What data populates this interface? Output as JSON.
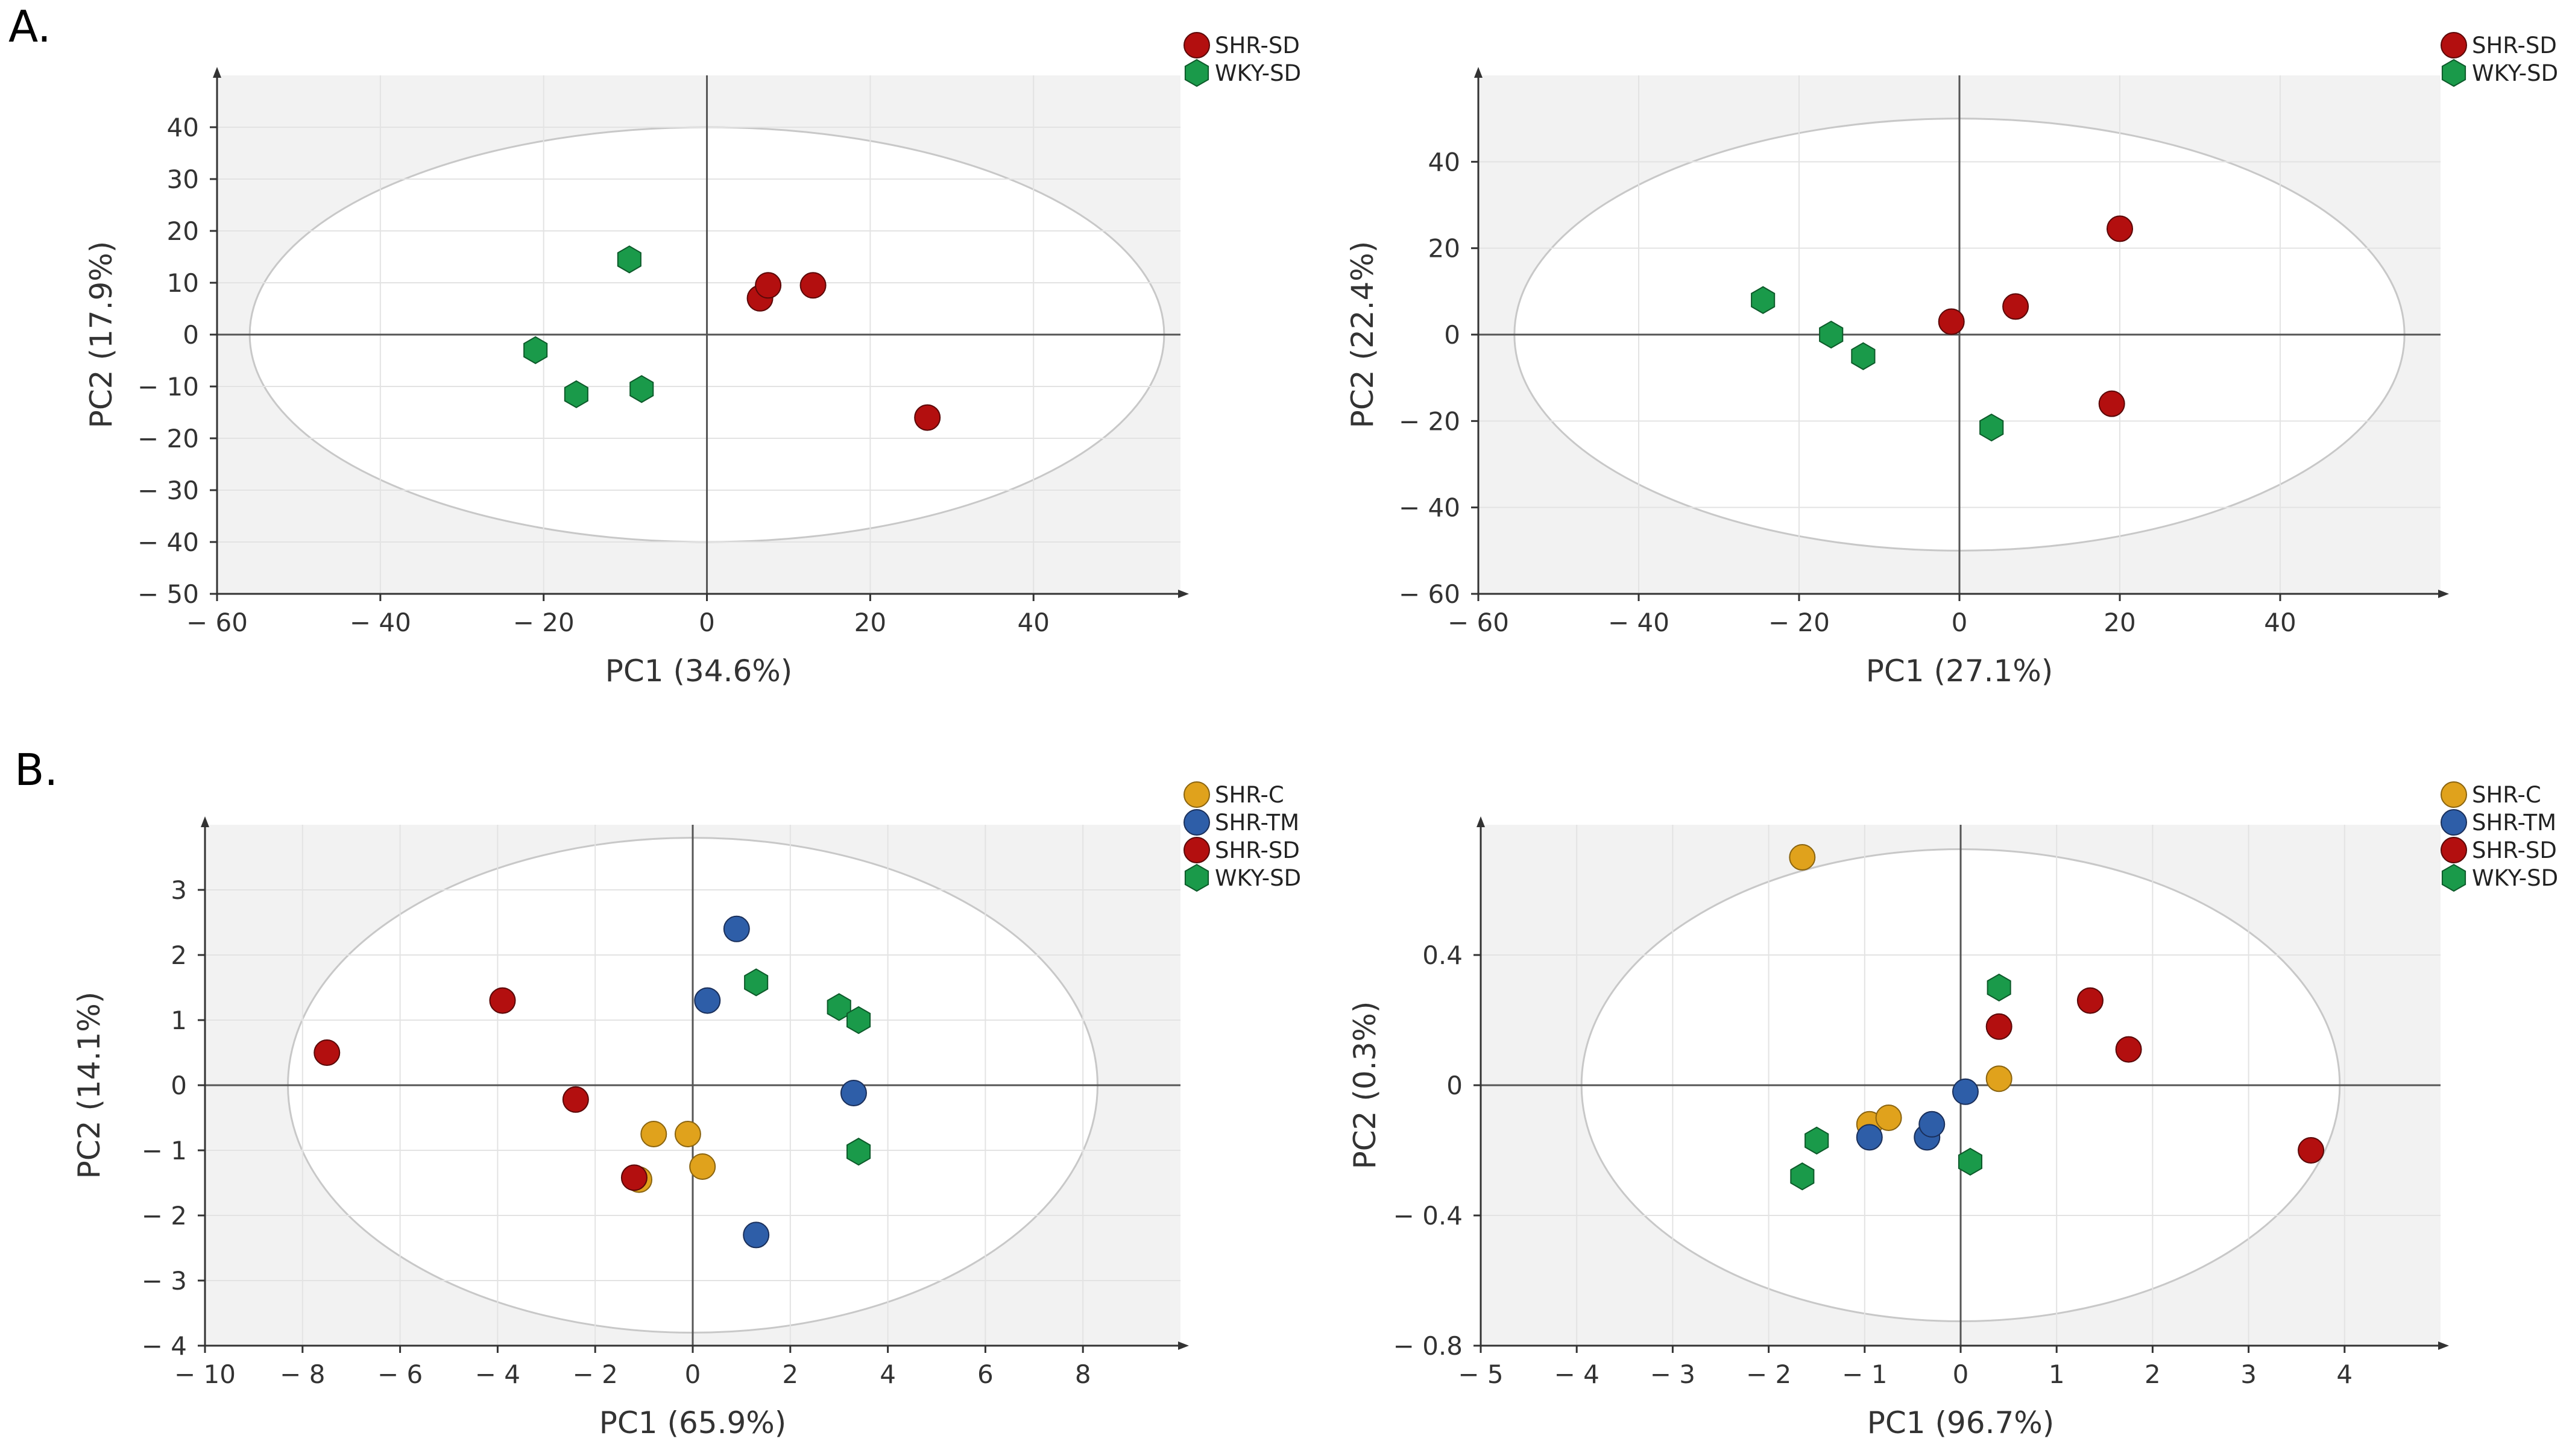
{
  "panels": {
    "a_label": "A.",
    "b_label": "B."
  },
  "chart_data": [
    {
      "type": "scatter",
      "panel": "A",
      "position": "left",
      "xlabel": "PC1 (34.6%)",
      "ylabel": "PC2 (17.9%)",
      "xlim": [
        -60,
        58
      ],
      "ylim": [
        -50,
        50
      ],
      "xticks": [
        -60,
        -40,
        -20,
        0,
        20,
        40
      ],
      "yticks": [
        -50,
        -40,
        -30,
        -20,
        -10,
        0,
        10,
        20,
        30,
        40
      ],
      "xtick_labels": [
        "− 60",
        "− 40",
        "− 20",
        "0",
        "20",
        "40"
      ],
      "ytick_labels": [
        "− 50",
        "− 40",
        "− 30",
        "− 20",
        "− 10",
        "0",
        "10",
        "20",
        "30",
        "40"
      ],
      "ellipse": {
        "rx": 56,
        "ry": 40
      },
      "legend_position": "top-right",
      "series": [
        {
          "name": "SHR-SD",
          "color": "#b30f0f",
          "marker": "circle",
          "points": [
            [
              6.5,
              7
            ],
            [
              7.5,
              9.5
            ],
            [
              13,
              9.5
            ],
            [
              27,
              -16
            ]
          ]
        },
        {
          "name": "WKY-SD",
          "color": "#1a9a4a",
          "marker": "hexagon",
          "points": [
            [
              -9.5,
              14.5
            ],
            [
              -21,
              -3
            ],
            [
              -16,
              -11.5
            ],
            [
              -8,
              -10.5
            ]
          ]
        }
      ]
    },
    {
      "type": "scatter",
      "panel": "A",
      "position": "right",
      "xlabel": "PC1 (27.1%)",
      "ylabel": "PC2 (22.4%)",
      "xlim": [
        -60,
        60
      ],
      "ylim": [
        -60,
        60
      ],
      "xticks": [
        -60,
        -40,
        -20,
        0,
        20,
        40
      ],
      "yticks": [
        -60,
        -40,
        -20,
        0,
        20,
        40
      ],
      "xtick_labels": [
        "− 60",
        "− 40",
        "− 20",
        "0",
        "20",
        "40"
      ],
      "ytick_labels": [
        "− 60",
        "− 40",
        "− 20",
        "0",
        "20",
        "40"
      ],
      "ellipse": {
        "rx": 55.5,
        "ry": 50
      },
      "legend_position": "top-right",
      "series": [
        {
          "name": "SHR-SD",
          "color": "#b30f0f",
          "marker": "circle",
          "points": [
            [
              20,
              24.5
            ],
            [
              -1,
              3
            ],
            [
              7,
              6.5
            ],
            [
              19,
              -16
            ]
          ]
        },
        {
          "name": "WKY-SD",
          "color": "#1a9a4a",
          "marker": "hexagon",
          "points": [
            [
              -24.5,
              8
            ],
            [
              -16,
              0
            ],
            [
              -12,
              -5
            ],
            [
              4,
              -21.5
            ]
          ]
        }
      ]
    },
    {
      "type": "scatter",
      "panel": "B",
      "position": "left",
      "xlabel": "PC1 (65.9%)",
      "ylabel": "PC2 (14.1%)",
      "xlim": [
        -10,
        10
      ],
      "ylim": [
        -4,
        4
      ],
      "xticks": [
        -10,
        -8,
        -6,
        -4,
        -2,
        0,
        2,
        4,
        6,
        8
      ],
      "yticks": [
        -4,
        -3,
        -2,
        -1,
        0,
        1,
        2,
        3
      ],
      "xtick_labels": [
        "− 10",
        "− 8",
        "− 6",
        "− 4",
        "− 2",
        "0",
        "2",
        "4",
        "6",
        "8"
      ],
      "ytick_labels": [
        "− 4",
        "− 3",
        "− 2",
        "− 1",
        "0",
        "1",
        "2",
        "3"
      ],
      "ellipse": {
        "rx": 8.3,
        "ry": 3.8
      },
      "legend_position": "top-right",
      "series": [
        {
          "name": "SHR-C",
          "color": "#e0a21c",
          "marker": "circle",
          "points": [
            [
              -0.8,
              -0.75
            ],
            [
              -0.1,
              -0.75
            ],
            [
              0.2,
              -1.25
            ],
            [
              -1.1,
              -1.45
            ]
          ]
        },
        {
          "name": "SHR-TM",
          "color": "#2e5ea8",
          "marker": "circle",
          "points": [
            [
              0.9,
              2.4
            ],
            [
              0.3,
              1.3
            ],
            [
              3.3,
              -0.12
            ],
            [
              1.3,
              -2.3
            ]
          ]
        },
        {
          "name": "SHR-SD",
          "color": "#b30f0f",
          "marker": "circle",
          "points": [
            [
              -7.5,
              0.5
            ],
            [
              -3.9,
              1.3
            ],
            [
              -2.4,
              -0.22
            ],
            [
              -1.2,
              -1.42
            ]
          ]
        },
        {
          "name": "WKY-SD",
          "color": "#1a9a4a",
          "marker": "hexagon",
          "points": [
            [
              1.3,
              1.58
            ],
            [
              3.0,
              1.2
            ],
            [
              3.4,
              1.0
            ],
            [
              3.4,
              -1.02
            ]
          ]
        }
      ]
    },
    {
      "type": "scatter",
      "panel": "B",
      "position": "right",
      "xlabel": "PC1 (96.7%)",
      "ylabel": "PC2 (0.3%)",
      "xlim": [
        -5,
        5
      ],
      "ylim": [
        -0.8,
        0.8
      ],
      "xticks": [
        -5,
        -4,
        -3,
        -2,
        -1,
        0,
        1,
        2,
        3,
        4
      ],
      "yticks": [
        -0.8,
        -0.4,
        0,
        0.4
      ],
      "xtick_labels": [
        "− 5",
        "− 4",
        "− 3",
        "− 2",
        "− 1",
        "0",
        "1",
        "2",
        "3",
        "4"
      ],
      "ytick_labels": [
        "− 0.8",
        "− 0.4",
        "0",
        "0.4"
      ],
      "ellipse": {
        "rx": 3.95,
        "ry": 0.725
      },
      "legend_position": "top-right",
      "series": [
        {
          "name": "SHR-C",
          "color": "#e0a21c",
          "marker": "circle",
          "points": [
            [
              -1.65,
              0.7
            ],
            [
              -0.95,
              -0.12
            ],
            [
              -0.75,
              -0.1
            ],
            [
              0.4,
              0.02
            ]
          ]
        },
        {
          "name": "SHR-TM",
          "color": "#2e5ea8",
          "marker": "circle",
          "points": [
            [
              -0.95,
              -0.16
            ],
            [
              -0.35,
              -0.16
            ],
            [
              -0.3,
              -0.12
            ],
            [
              0.05,
              -0.02
            ]
          ]
        },
        {
          "name": "SHR-SD",
          "color": "#b30f0f",
          "marker": "circle",
          "points": [
            [
              1.35,
              0.26
            ],
            [
              0.4,
              0.18
            ],
            [
              1.75,
              0.11
            ],
            [
              3.65,
              -0.2
            ]
          ]
        },
        {
          "name": "WKY-SD",
          "color": "#1a9a4a",
          "marker": "hexagon",
          "points": [
            [
              0.4,
              0.3
            ],
            [
              -1.5,
              -0.17
            ],
            [
              -1.65,
              -0.28
            ],
            [
              0.1,
              -0.235
            ]
          ]
        }
      ]
    }
  ]
}
